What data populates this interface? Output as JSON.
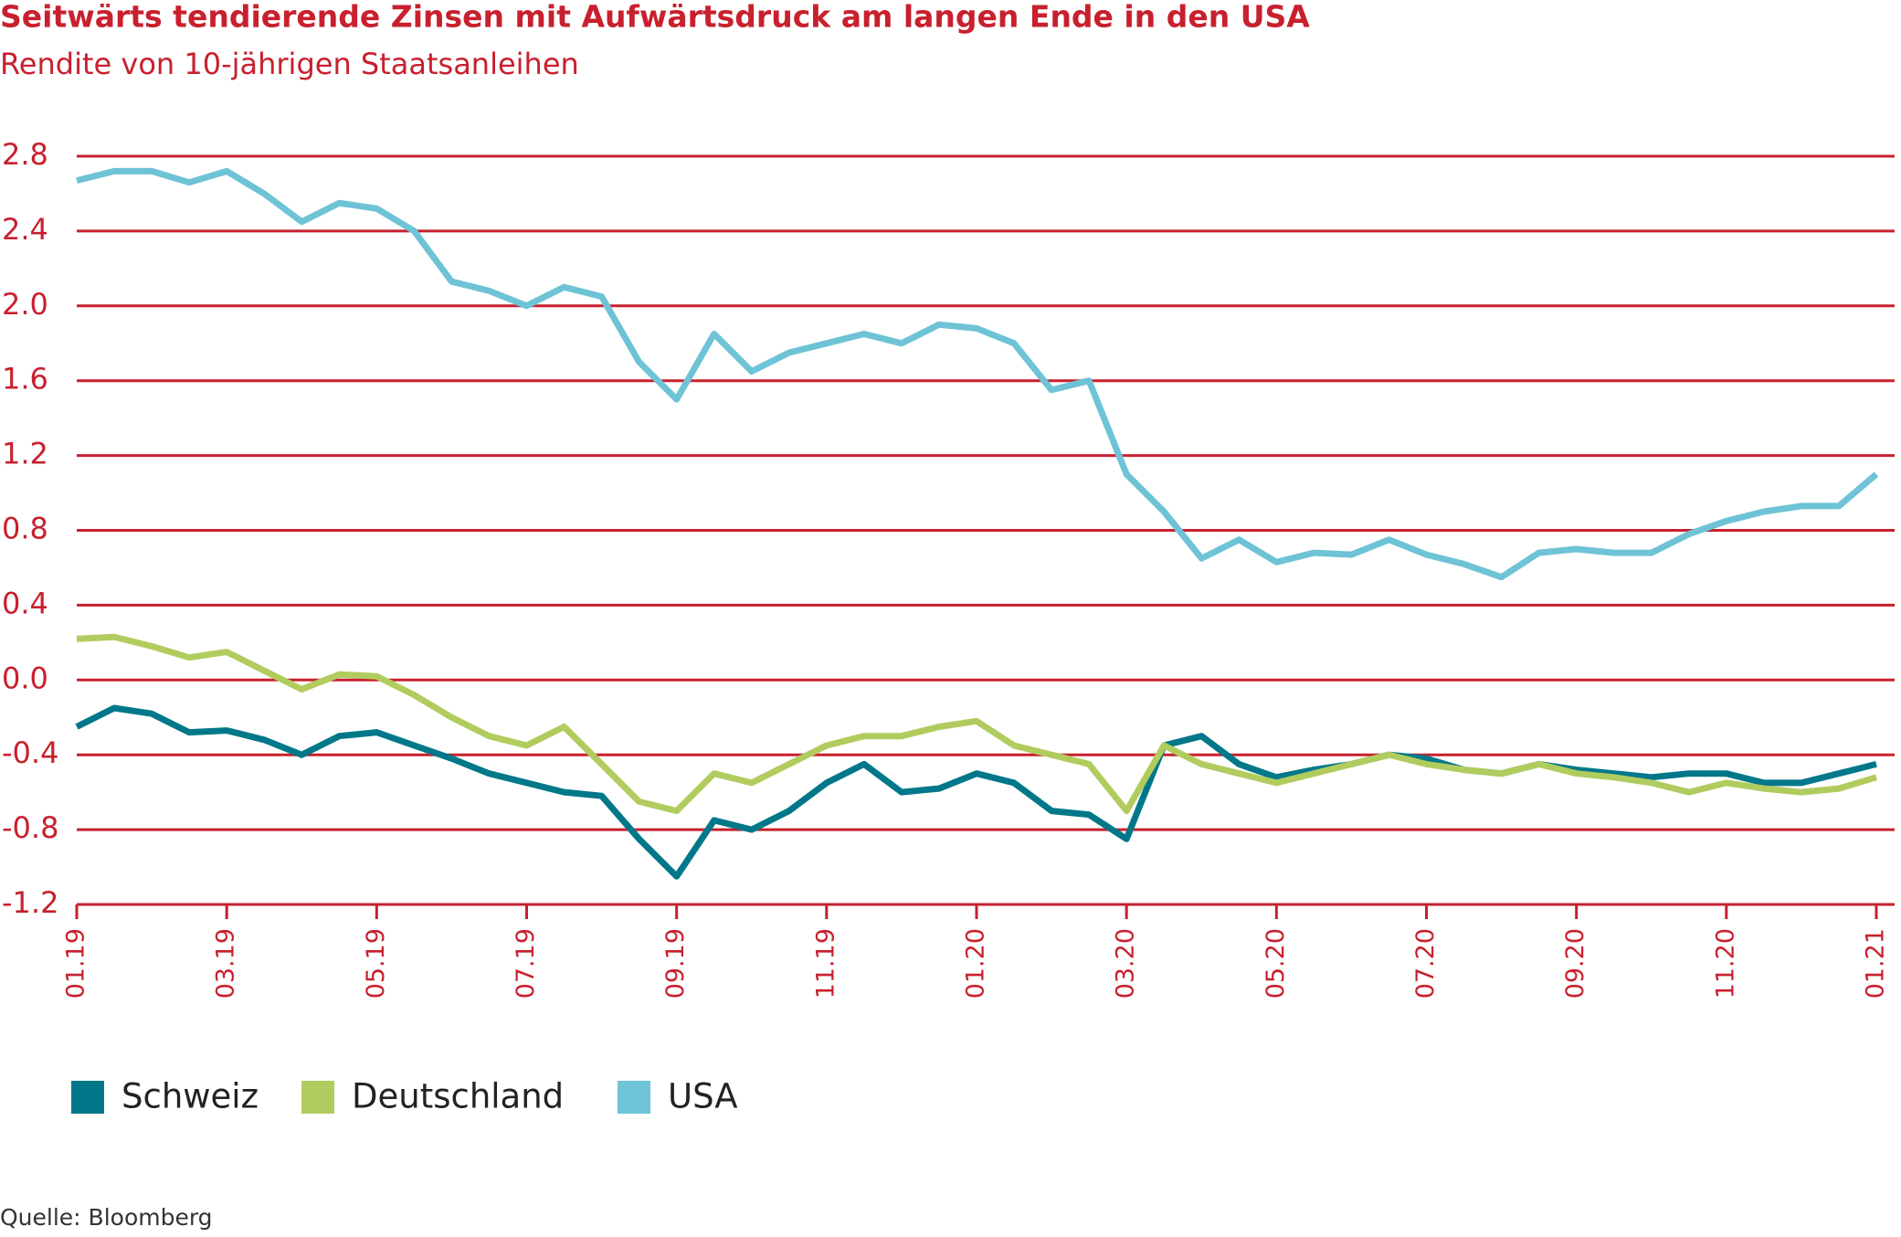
{
  "chart_data": {
    "type": "line",
    "title": "Seitwärts tendierende Zinsen mit Aufwärtsdruck am langen Ende in den USA",
    "subtitle": "Rendite von 10-jährigen Staatsanleihen",
    "source": "Quelle: Bloomberg",
    "categories": [
      "01.19",
      null,
      null,
      null,
      "03.19",
      null,
      null,
      null,
      "05.19",
      null,
      null,
      null,
      "07.19",
      null,
      null,
      null,
      "09.19",
      null,
      null,
      null,
      "11.19",
      null,
      null,
      null,
      "01.20",
      null,
      null,
      null,
      "03.20",
      null,
      null,
      null,
      "05.20",
      null,
      null,
      null,
      "07.20",
      null,
      null,
      null,
      "09.20",
      null,
      null,
      null,
      "11.20",
      null,
      null,
      null,
      "01.21"
    ],
    "series": [
      {
        "name": "Schweiz",
        "color": "#00788a",
        "values": [
          -0.25,
          -0.15,
          -0.18,
          -0.28,
          -0.27,
          -0.32,
          -0.4,
          -0.3,
          -0.28,
          -0.35,
          -0.42,
          -0.5,
          -0.55,
          -0.6,
          -0.62,
          -0.85,
          -1.05,
          -0.75,
          -0.8,
          -0.7,
          -0.55,
          -0.45,
          -0.6,
          -0.58,
          -0.5,
          -0.55,
          -0.7,
          -0.72,
          -0.85,
          -0.35,
          -0.3,
          -0.45,
          -0.52,
          -0.48,
          -0.45,
          -0.4,
          -0.42,
          -0.48,
          -0.5,
          -0.45,
          -0.48,
          -0.5,
          -0.52,
          -0.5,
          -0.5,
          -0.55,
          -0.55,
          -0.5,
          -0.45
        ]
      },
      {
        "name": "Deutschland",
        "color": "#b1cc5e",
        "values": [
          0.22,
          0.23,
          0.18,
          0.12,
          0.15,
          0.05,
          -0.05,
          0.03,
          0.02,
          -0.08,
          -0.2,
          -0.3,
          -0.35,
          -0.25,
          -0.45,
          -0.65,
          -0.7,
          -0.5,
          -0.55,
          -0.45,
          -0.35,
          -0.3,
          -0.3,
          -0.25,
          -0.22,
          -0.35,
          -0.4,
          -0.45,
          -0.7,
          -0.35,
          -0.45,
          -0.5,
          -0.55,
          -0.5,
          -0.45,
          -0.4,
          -0.45,
          -0.48,
          -0.5,
          -0.45,
          -0.5,
          -0.52,
          -0.55,
          -0.6,
          -0.55,
          -0.58,
          -0.6,
          -0.58,
          -0.52
        ]
      },
      {
        "name": "USA",
        "color": "#6ec3d6",
        "values": [
          2.67,
          2.72,
          2.72,
          2.66,
          2.72,
          2.6,
          2.45,
          2.55,
          2.52,
          2.4,
          2.13,
          2.08,
          2.0,
          2.1,
          2.05,
          1.7,
          1.5,
          1.85,
          1.65,
          1.75,
          1.8,
          1.85,
          1.8,
          1.9,
          1.88,
          1.8,
          1.55,
          1.6,
          1.1,
          0.9,
          0.65,
          0.75,
          0.63,
          0.68,
          0.67,
          0.75,
          0.67,
          0.62,
          0.55,
          0.68,
          0.7,
          0.68,
          0.68,
          0.78,
          0.85,
          0.9,
          0.93,
          0.93,
          1.1
        ]
      }
    ],
    "ylim": [
      -1.2,
      2.8
    ],
    "yticks": [
      2.8,
      2.4,
      {
        "value": 2,
        "label": "2.0"
      },
      1.6,
      1.2,
      0.8,
      0.4,
      {
        "value": 0,
        "label": "0.0"
      },
      -0.4,
      -0.8,
      -1.2
    ],
    "grid": true,
    "grid_color": "#c8202e",
    "legend": "bottom"
  }
}
